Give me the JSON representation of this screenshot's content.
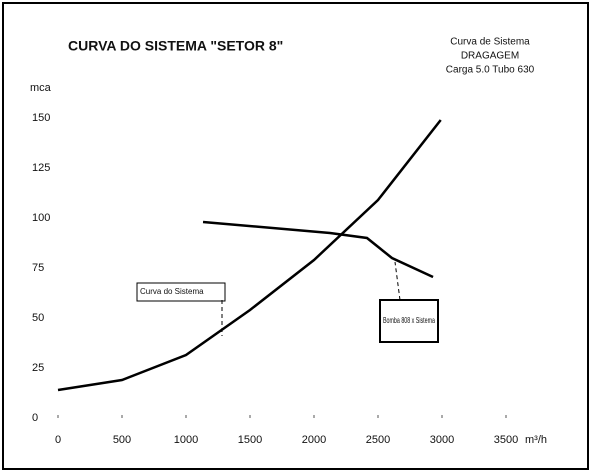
{
  "chart_data": {
    "type": "line",
    "title": "CURVA DO SISTEMA \"SETOR 8\"",
    "subtitle": [
      "Curva de Sistema",
      "DRAGAGEM",
      "Carga 5.0 Tubo 630"
    ],
    "y_label": "mca",
    "x_label": "m³/h",
    "xlim": [
      0,
      3500
    ],
    "xticks": [
      0,
      500,
      1000,
      1500,
      2000,
      2500,
      3000,
      3500
    ],
    "ylim": [
      0,
      150
    ],
    "yticks": [
      0,
      25,
      50,
      75,
      100,
      125,
      150
    ],
    "series": [
      {
        "name": "Curva do Sistema",
        "color": "#000000",
        "x": [
          0,
          500,
          1000,
          1500,
          2000,
          2500,
          2990
        ],
        "values": [
          14,
          19,
          31.5,
          54,
          79,
          109,
          149
        ]
      },
      {
        "name": "Bomba 808 x Sistema",
        "color": "#000000",
        "x": [
          1133,
          2125,
          2414,
          2609,
          2930
        ],
        "values": [
          98,
          92.5,
          90,
          80,
          70.5
        ]
      }
    ],
    "annotations": [
      {
        "text": "Curva do Sistema"
      },
      {
        "text": "Bomba 808 x Sistema"
      }
    ]
  }
}
